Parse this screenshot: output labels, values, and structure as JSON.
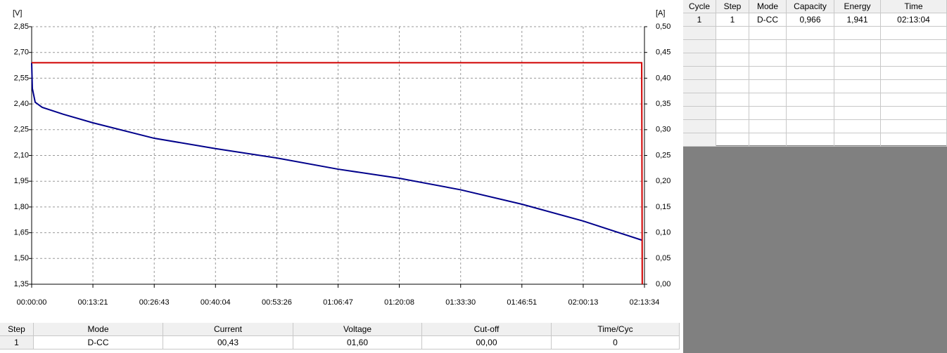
{
  "chart_data": {
    "type": "line",
    "xlim": [
      0,
      8014
    ],
    "xticks": [
      {
        "value": 0,
        "label": "00:00:00"
      },
      {
        "value": 801,
        "label": "00:13:21"
      },
      {
        "value": 1603,
        "label": "00:26:43"
      },
      {
        "value": 2404,
        "label": "00:40:04"
      },
      {
        "value": 3206,
        "label": "00:53:26"
      },
      {
        "value": 4007,
        "label": "01:06:47"
      },
      {
        "value": 4808,
        "label": "01:20:08"
      },
      {
        "value": 5610,
        "label": "01:33:30"
      },
      {
        "value": 6411,
        "label": "01:46:51"
      },
      {
        "value": 7213,
        "label": "02:00:13"
      },
      {
        "value": 8014,
        "label": "02:13:34"
      }
    ],
    "y_label": "[V]",
    "y2_label": "[A]",
    "ylim": [
      1.35,
      2.85
    ],
    "yticks": [
      {
        "value": 1.35,
        "label": "1,35"
      },
      {
        "value": 1.5,
        "label": "1,50"
      },
      {
        "value": 1.65,
        "label": "1,65"
      },
      {
        "value": 1.8,
        "label": "1,80"
      },
      {
        "value": 1.95,
        "label": "1,95"
      },
      {
        "value": 2.1,
        "label": "2,10"
      },
      {
        "value": 2.25,
        "label": "2,25"
      },
      {
        "value": 2.4,
        "label": "2,40"
      },
      {
        "value": 2.55,
        "label": "2,55"
      },
      {
        "value": 2.7,
        "label": "2,70"
      },
      {
        "value": 2.85,
        "label": "2,85"
      }
    ],
    "y2lim": [
      0,
      0.5
    ],
    "y2ticks": [
      {
        "value": 0,
        "label": "0,00"
      },
      {
        "value": 0.05,
        "label": "0,05"
      },
      {
        "value": 0.1,
        "label": "0,10"
      },
      {
        "value": 0.15,
        "label": "0,15"
      },
      {
        "value": 0.2,
        "label": "0,20"
      },
      {
        "value": 0.25,
        "label": "0,25"
      },
      {
        "value": 0.3,
        "label": "0,30"
      },
      {
        "value": 0.35,
        "label": "0,35"
      },
      {
        "value": 0.4,
        "label": "0,40"
      },
      {
        "value": 0.45,
        "label": "0,45"
      },
      {
        "value": 0.5,
        "label": "0,50"
      }
    ],
    "grid": true,
    "series": [
      {
        "color": "#00008b",
        "x": [
          0,
          9,
          46,
          138,
          414,
          801,
          1603,
          2404,
          3206,
          4007,
          4808,
          5610,
          6411,
          7212,
          7978
        ],
        "values": [
          2.64,
          2.49,
          2.41,
          2.38,
          2.34,
          2.29,
          2.2,
          2.14,
          2.085,
          2.02,
          1.967,
          1.9,
          1.816,
          1.718,
          1.607
        ]
      },
      {
        "color": "#d00000",
        "axis": "y2",
        "x": [
          0,
          7978,
          7985
        ],
        "values": [
          0.43,
          0.43,
          0
        ]
      }
    ]
  },
  "cycle_table": {
    "header": [
      "Cycle",
      "Step",
      "Mode",
      "Capacity",
      "Energy",
      "Time"
    ],
    "rows": [
      [
        "1",
        "1",
        "D-CC",
        "0,966",
        "1,941",
        "02:13:04"
      ]
    ]
  },
  "step_table": {
    "header": [
      "Step",
      "Mode",
      "Current",
      "Voltage",
      "Cut-off",
      "Time/Cyc"
    ],
    "rows": [
      [
        "1",
        "D-CC",
        "00,43",
        "01,60",
        "00,00",
        "0"
      ]
    ]
  }
}
